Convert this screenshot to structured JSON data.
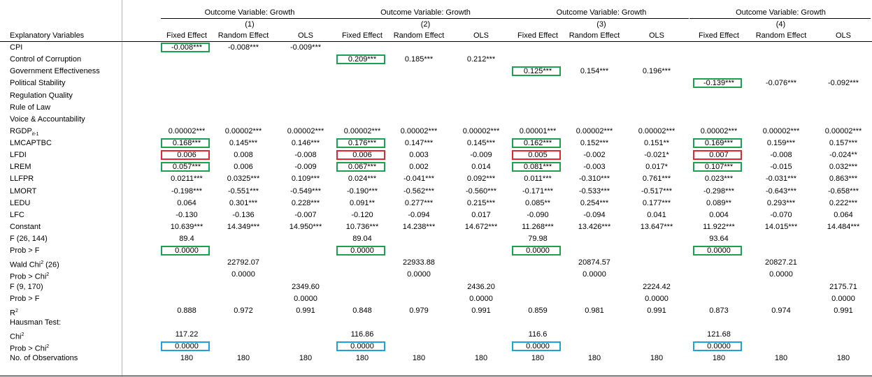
{
  "colors": {
    "green": "#1aa152",
    "red": "#e0282e",
    "blue": "#1ea2d8"
  },
  "groups": [
    {
      "title": "Outcome Variable: Growth",
      "num": "(1)"
    },
    {
      "title": "Outcome Variable: Growth",
      "num": "(2)"
    },
    {
      "title": "Outcome Variable: Growth",
      "num": "(3)"
    },
    {
      "title": "Outcome Variable: Growth",
      "num": "(4)"
    }
  ],
  "header_label": "Explanatory Variables",
  "col_heads": [
    "Fixed Effect",
    "Random Effect",
    "OLS",
    "Fixed Effect",
    "Random Effect",
    "OLS",
    "Fixed Effect",
    "Random Effect",
    "OLS",
    "Fixed Effect",
    "Random Effect",
    "OLS"
  ],
  "rows": [
    {
      "label": "CPI",
      "cells": [
        "-0.008***",
        "-0.008***",
        "-0.009***",
        "",
        "",
        "",
        "",
        "",
        "",
        "",
        "",
        ""
      ]
    },
    {
      "label": "Control of Corruption",
      "cells": [
        "",
        "",
        "",
        "0.209***",
        "0.185***",
        "0.212***",
        "",
        "",
        "",
        "",
        "",
        ""
      ]
    },
    {
      "label": "Government Effectiveness",
      "cells": [
        "",
        "",
        "",
        "",
        "",
        "",
        "0.125***",
        "0.154***",
        "0.196***",
        "",
        "",
        ""
      ]
    },
    {
      "label": "Political Stability",
      "cells": [
        "",
        "",
        "",
        "",
        "",
        "",
        "",
        "",
        "",
        "-0.139***",
        "-0.076***",
        "-0.092***"
      ]
    },
    {
      "label": "Regulation Quality",
      "cells": [
        "",
        "",
        "",
        "",
        "",
        "",
        "",
        "",
        "",
        "",
        "",
        ""
      ]
    },
    {
      "label": "Rule of Law",
      "cells": [
        "",
        "",
        "",
        "",
        "",
        "",
        "",
        "",
        "",
        "",
        "",
        ""
      ]
    },
    {
      "label": "Voice & Accountability",
      "cells": [
        "",
        "",
        "",
        "",
        "",
        "",
        "",
        "",
        "",
        "",
        "",
        ""
      ]
    },
    {
      "label": "RGDP",
      "sub": "it-1",
      "cells": [
        "0.00002***",
        "0.00002***",
        "0.00002***",
        "0.00002***",
        "0.00002***",
        "0.00002***",
        "0.00001***",
        "0.00002***",
        "0.00002***",
        "0.00002***",
        "0.00002***",
        "0.00002***"
      ]
    },
    {
      "label": "LMCAPTBC",
      "cells": [
        "0.168***",
        "0.145***",
        "0.146***",
        "0.176***",
        "0.147***",
        "0.145***",
        "0.162***",
        "0.152***",
        "0.151**",
        "0.169***",
        "0.159***",
        "0.157***"
      ]
    },
    {
      "label": "LFDI",
      "cells": [
        "0.006",
        "0.008",
        "-0.008",
        "0.006",
        "0.003",
        "-0.009",
        "0.005",
        "-0.002",
        "-0.021*",
        "0.007",
        "-0.008",
        "-0.024**"
      ]
    },
    {
      "label": "LREM",
      "cells": [
        "0.057***",
        "0.006",
        "-0.009",
        "0.067***",
        "0.002",
        "0.014",
        "0.081***",
        "-0.003",
        "0.017*",
        "0.107***",
        "-0.015",
        "0.032***"
      ]
    },
    {
      "label": "LLFPR",
      "cells": [
        "0.0211***",
        "0.0325***",
        "0.109***",
        "0.024***",
        "-0.041***",
        "0.092***",
        "0.011***",
        "-0.310***",
        "0.761***",
        "0.023***",
        "-0.031***",
        "0.863***"
      ]
    },
    {
      "label": "LMORT",
      "cells": [
        "-0.198***",
        "-0.551***",
        "-0.549***",
        "-0.190***",
        "-0.562***",
        "-0.560***",
        "-0.171***",
        "-0.533***",
        "-0.517***",
        "-0.298***",
        "-0.643***",
        "-0.658***"
      ]
    },
    {
      "label": "LEDU",
      "cells": [
        "0.064",
        "0.301***",
        "0.228***",
        "0.091**",
        "0.277***",
        "0.215***",
        "0.085**",
        "0.254***",
        "0.177***",
        "0.089**",
        "0.293***",
        "0.222***"
      ]
    },
    {
      "label": "LFC",
      "cells": [
        "-0.130",
        "-0.136",
        "-0.007",
        "-0.120",
        "-0.094",
        "0.017",
        "-0.090",
        "-0.094",
        "0.041",
        "0.004",
        "-0.070",
        "0.064"
      ]
    },
    {
      "label": "Constant",
      "cells": [
        "10.639***",
        "14.349***",
        "14.950***",
        "10.736***",
        "14.238***",
        "14.672***",
        "11.268***",
        "13.426***",
        "13.647***",
        "11.922***",
        "14.015***",
        "14.484***"
      ]
    },
    {
      "label": "F (26, 144)",
      "cells": [
        "89.4",
        "",
        "",
        "89.04",
        "",
        "",
        "79.98",
        "",
        "",
        "93.64",
        "",
        ""
      ]
    },
    {
      "label": "Prob > F",
      "cells": [
        "0.0000",
        "",
        "",
        "0.0000",
        "",
        "",
        "0.0000",
        "",
        "",
        "0.0000",
        "",
        ""
      ]
    },
    {
      "label": "Wald Chi",
      "sup": "2",
      "after": " (26)",
      "cells": [
        "",
        "22792.07",
        "",
        "",
        "22933.88",
        "",
        "",
        "20874.57",
        "",
        "",
        "20827.21",
        ""
      ]
    },
    {
      "label": "Prob > Chi",
      "sup": "2",
      "cells": [
        "",
        "0.0000",
        "",
        "",
        "0.0000",
        "",
        "",
        "0.0000",
        "",
        "",
        "0.0000",
        ""
      ]
    },
    {
      "label": "F (9, 170)",
      "cells": [
        "",
        "",
        "2349.60",
        "",
        "",
        "2436.20",
        "",
        "",
        "2224.42",
        "",
        "",
        "2175.71"
      ]
    },
    {
      "label": "Prob > F",
      "cells": [
        "",
        "",
        "0.0000",
        "",
        "",
        "0.0000",
        "",
        "",
        "0.0000",
        "",
        "",
        "0.0000"
      ]
    },
    {
      "label": "R",
      "sup": "2",
      "cells": [
        "0.888",
        "0.972",
        "0.991",
        "0.848",
        "0.979",
        "0.991",
        "0.859",
        "0.981",
        "0.991",
        "0.873",
        "0.974",
        "0.991"
      ]
    },
    {
      "label": "Hausman Test:",
      "cells": [
        "",
        "",
        "",
        "",
        "",
        "",
        "",
        "",
        "",
        "",
        "",
        ""
      ]
    },
    {
      "label": "Chi",
      "sup": "2",
      "cells": [
        "117.22",
        "",
        "",
        "116.86",
        "",
        "",
        "116.6",
        "",
        "",
        "121.68",
        "",
        ""
      ]
    },
    {
      "label": "Prob > Chi",
      "sup": "2",
      "cells": [
        "0.0000",
        "",
        "",
        "0.0000",
        "",
        "",
        "0.0000",
        "",
        "",
        "0.0000",
        "",
        ""
      ]
    },
    {
      "label": "No. of Observations",
      "cells": [
        "180",
        "180",
        "180",
        "180",
        "180",
        "180",
        "180",
        "180",
        "180",
        "180",
        "180",
        "180"
      ]
    }
  ],
  "highlights": [
    {
      "row": 0,
      "col": 0,
      "color": "green"
    },
    {
      "row": 1,
      "col": 3,
      "color": "green"
    },
    {
      "row": 2,
      "col": 6,
      "color": "green"
    },
    {
      "row": 3,
      "col": 9,
      "color": "green"
    },
    {
      "row": 8,
      "col": 0,
      "color": "green"
    },
    {
      "row": 8,
      "col": 3,
      "color": "green"
    },
    {
      "row": 8,
      "col": 6,
      "color": "green"
    },
    {
      "row": 8,
      "col": 9,
      "color": "green"
    },
    {
      "row": 9,
      "col": 0,
      "color": "red"
    },
    {
      "row": 9,
      "col": 3,
      "color": "red"
    },
    {
      "row": 9,
      "col": 6,
      "color": "red"
    },
    {
      "row": 9,
      "col": 9,
      "color": "red"
    },
    {
      "row": 10,
      "col": 0,
      "color": "green"
    },
    {
      "row": 10,
      "col": 3,
      "color": "green"
    },
    {
      "row": 10,
      "col": 6,
      "color": "green"
    },
    {
      "row": 10,
      "col": 9,
      "color": "green"
    },
    {
      "row": 17,
      "col": 0,
      "color": "green"
    },
    {
      "row": 17,
      "col": 3,
      "color": "green"
    },
    {
      "row": 17,
      "col": 6,
      "color": "green"
    },
    {
      "row": 17,
      "col": 9,
      "color": "green"
    },
    {
      "row": 25,
      "col": 0,
      "color": "blue"
    },
    {
      "row": 25,
      "col": 3,
      "color": "blue"
    },
    {
      "row": 25,
      "col": 6,
      "color": "blue"
    },
    {
      "row": 25,
      "col": 9,
      "color": "blue"
    }
  ]
}
